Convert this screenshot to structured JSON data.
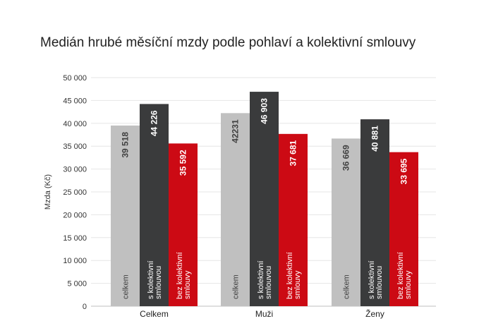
{
  "chart_data": {
    "type": "bar",
    "title": "Medián hrubé měsíční mzdy podle pohlaví a kolektivní smlouvy",
    "xlabel": "",
    "ylabel": "Mzda (Kč)",
    "ylim": [
      0,
      50000
    ],
    "yticks": [
      0,
      5000,
      10000,
      15000,
      20000,
      25000,
      30000,
      35000,
      40000,
      45000,
      50000
    ],
    "ytick_labels": [
      "0",
      "5 000",
      "10 000",
      "15 000",
      "20 000",
      "25 000",
      "30 000",
      "35 000",
      "40 000",
      "45 000",
      "50 000"
    ],
    "grid": true,
    "legend": "none",
    "categories": [
      "Celkem",
      "Muži",
      "Ženy"
    ],
    "series": [
      {
        "name": "celkem",
        "color": "#c0c0c0",
        "values": [
          39518,
          42231,
          36669
        ],
        "value_labels": [
          "39 518",
          "42231",
          "36 669"
        ],
        "label_color": "#404040"
      },
      {
        "name": "s kolektivní smlouvou",
        "color": "#3a3b3c",
        "values": [
          44226,
          46903,
          40881
        ],
        "value_labels": [
          "44 226",
          "46 903",
          "40 881"
        ],
        "label_color": "#ffffff"
      },
      {
        "name": "bez kolektivní smlouvy",
        "color": "#cc0a14",
        "values": [
          35592,
          37681,
          33695
        ],
        "value_labels": [
          "35 592",
          "37 681",
          "33 695"
        ],
        "label_color": "#ffffff"
      }
    ]
  }
}
